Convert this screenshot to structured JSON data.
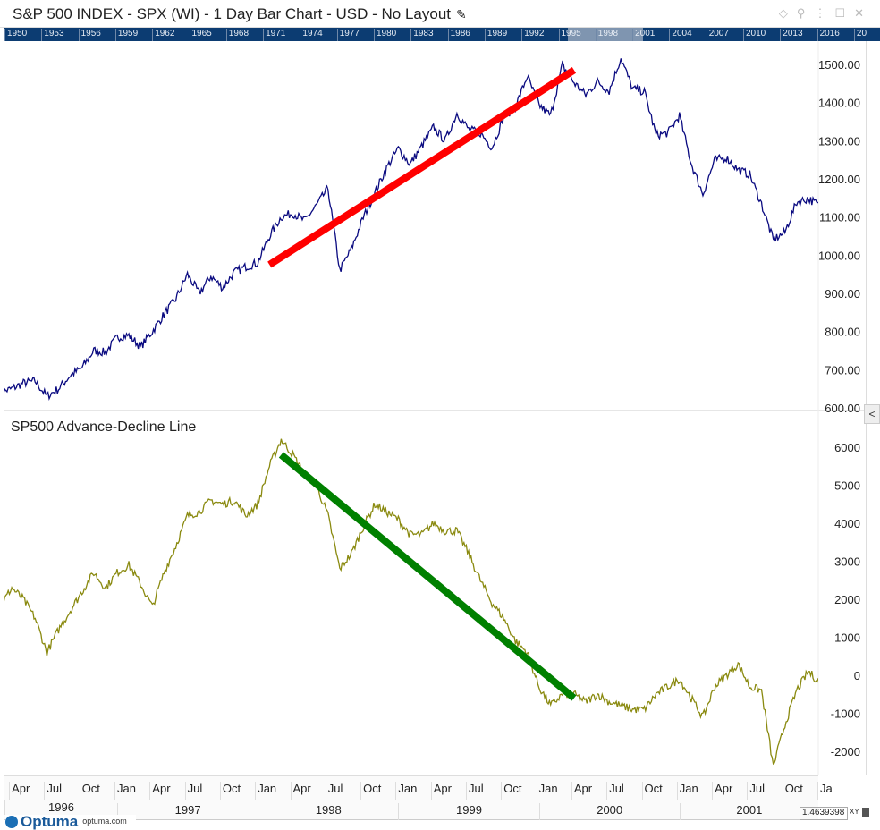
{
  "title": "S&P 500 INDEX - SPX (WI) - 1 Day Bar Chart - USD - No Layout",
  "icons": {
    "edit": "pencil-icon",
    "window": [
      "diamond-icon",
      "pin-icon",
      "more-icon",
      "maximize-icon",
      "close-icon"
    ]
  },
  "timeline_years": [
    "1950",
    "1953",
    "1956",
    "1959",
    "1962",
    "1965",
    "1968",
    "1971",
    "1974",
    "1977",
    "1980",
    "1983",
    "1986",
    "1989",
    "1992",
    "1995",
    "1998",
    "2001",
    "2004",
    "2007",
    "2010",
    "2013",
    "2016",
    "20"
  ],
  "months": [
    "Apr",
    "Jul",
    "Oct",
    "Jan",
    "Apr",
    "Jul",
    "Oct",
    "Jan",
    "Apr",
    "Jul",
    "Oct",
    "Jan",
    "Apr",
    "Jul",
    "Oct",
    "Jan",
    "Apr",
    "Jul",
    "Oct",
    "Jan",
    "Apr",
    "Jul",
    "Oct",
    "Ja"
  ],
  "years": [
    "1996",
    "1997",
    "1998",
    "1999",
    "2000",
    "2001"
  ],
  "logo": {
    "name": "Optuma",
    "site": "optuma.com"
  },
  "value_box": "1.4639398",
  "xy_label": "XY",
  "collapse_label": "<",
  "chart_data": [
    {
      "type": "line",
      "title": "",
      "ylim": [
        600,
        1550
      ],
      "yticks": [
        "600.00",
        "700.00",
        "800.00",
        "900.00",
        "1000.00",
        "1100.00",
        "1200.00",
        "1300.00",
        "1400.00",
        "1500.00"
      ],
      "color": "#0a0a80",
      "x": [
        "1996-03",
        "1996-04",
        "1996-05",
        "1996-06",
        "1996-07",
        "1996-08",
        "1996-09",
        "1996-10",
        "1996-11",
        "1996-12",
        "1997-01",
        "1997-02",
        "1997-03",
        "1997-04",
        "1997-05",
        "1997-06",
        "1997-07",
        "1997-08",
        "1997-09",
        "1997-10",
        "1997-11",
        "1997-12",
        "1998-01",
        "1998-02",
        "1998-03",
        "1998-04",
        "1998-05",
        "1998-06",
        "1998-07",
        "1998-08",
        "1998-09",
        "1998-10",
        "1998-11",
        "1998-12",
        "1999-01",
        "1999-02",
        "1999-03",
        "1999-04",
        "1999-05",
        "1999-06",
        "1999-07",
        "1999-08",
        "1999-09",
        "1999-10",
        "1999-11",
        "1999-12",
        "2000-01",
        "2000-02",
        "2000-03",
        "2000-04",
        "2000-05",
        "2000-06",
        "2000-07",
        "2000-08",
        "2000-09",
        "2000-10",
        "2000-11",
        "2000-12",
        "2001-01",
        "2001-02",
        "2001-03",
        "2001-04",
        "2001-05",
        "2001-06",
        "2001-07",
        "2001-08",
        "2001-09",
        "2001-10",
        "2001-11",
        "2001-12",
        "2002-01",
        "2002-02"
      ],
      "values": [
        640,
        650,
        665,
        670,
        630,
        650,
        685,
        705,
        750,
        745,
        785,
        790,
        760,
        800,
        845,
        885,
        950,
        900,
        945,
        915,
        955,
        970,
        980,
        1050,
        1100,
        1110,
        1090,
        1130,
        1175,
        960,
        1017,
        1098,
        1163,
        1229,
        1280,
        1238,
        1286,
        1335,
        1300,
        1372,
        1330,
        1320,
        1282,
        1362,
        1388,
        1469,
        1394,
        1366,
        1498,
        1452,
        1420,
        1455,
        1430,
        1517,
        1436,
        1429,
        1315,
        1320,
        1366,
        1240,
        1160,
        1249,
        1256,
        1224,
        1211,
        1134,
        1040,
        1060,
        1139,
        1148,
        1130,
        1106
      ],
      "trendline": {
        "color": "#ff0000",
        "from": [
          "1998-02",
          975
        ],
        "to": [
          "2000-04",
          1485
        ]
      }
    },
    {
      "type": "line",
      "title": "SP500 Advance-Decline Line",
      "ylim": [
        -2500,
        6500
      ],
      "yticks": [
        "-2000",
        "-1000",
        "0",
        "1000",
        "2000",
        "3000",
        "4000",
        "5000",
        "6000"
      ],
      "color": "#8a8a10",
      "values": [
        1800,
        2300,
        2000,
        1500,
        600,
        1200,
        1700,
        2200,
        2700,
        2300,
        2700,
        2900,
        2400,
        1800,
        2700,
        3400,
        4200,
        4300,
        4600,
        4500,
        4600,
        4200,
        4500,
        5500,
        6200,
        5800,
        5300,
        5000,
        4200,
        2800,
        3200,
        3900,
        4500,
        4300,
        4100,
        3700,
        3700,
        4000,
        3800,
        3800,
        3200,
        2500,
        1900,
        1500,
        900,
        600,
        -300,
        -800,
        -500,
        -500,
        -700,
        -500,
        -700,
        -800,
        -900,
        -900,
        -500,
        -300,
        -100,
        -600,
        -1100,
        -300,
        0,
        300,
        -300,
        -400,
        -2400,
        -1300,
        -400,
        100,
        -200,
        -400
      ],
      "trendline": {
        "color": "#008000",
        "from": [
          "1998-03",
          5800
        ],
        "to": [
          "2000-04",
          -600
        ]
      }
    }
  ]
}
